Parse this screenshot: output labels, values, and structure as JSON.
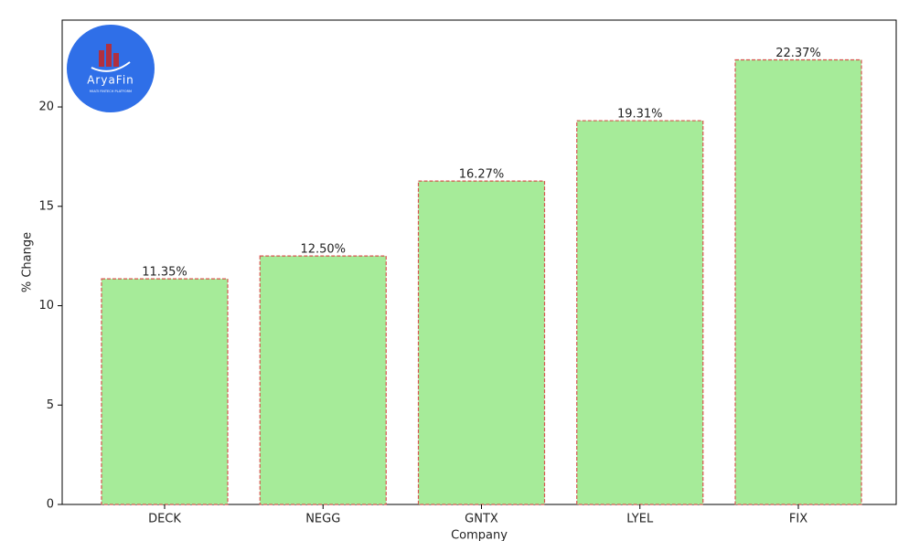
{
  "chart_data": {
    "type": "bar",
    "x_label": "Company",
    "y_label": "% Change",
    "categories": [
      "DECK",
      "NEGG",
      "GNTX",
      "LYEL",
      "FIX"
    ],
    "values": [
      11.35,
      12.5,
      16.27,
      19.31,
      22.37
    ],
    "value_labels": [
      "11.35%",
      "12.50%",
      "16.27%",
      "19.31%",
      "22.37%"
    ],
    "color": "#a6eb99",
    "edge_color": "#d9534f",
    "ylim": [
      0,
      24.37
    ],
    "yticks": [
      0,
      5,
      10,
      15,
      20
    ],
    "grid": false
  },
  "logo": {
    "name": "AryaFin",
    "tagline": "MULTI FINTECH PLATFORM"
  }
}
